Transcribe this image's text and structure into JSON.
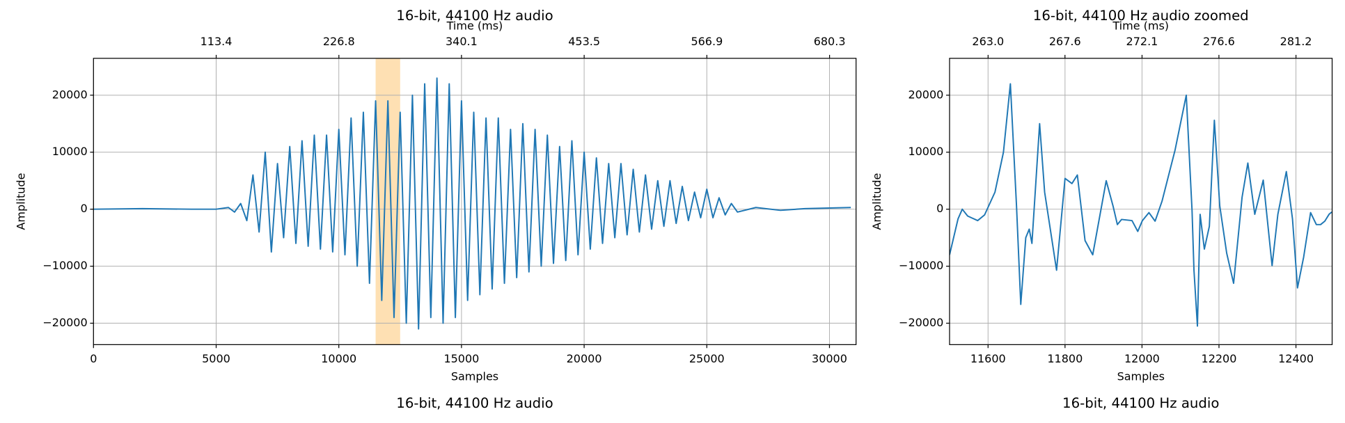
{
  "chart_data": [
    {
      "type": "line",
      "title": "16-bit, 44100 Hz audio",
      "x2label": "Time (ms)",
      "xlabel": "Samples",
      "ylabel": "Amplitude",
      "caption": "16-bit, 44100 Hz audio",
      "x": [
        0,
        2000,
        4000,
        5000,
        5500,
        5750,
        6000,
        6250,
        6500,
        6750,
        7000,
        7250,
        7500,
        7750,
        8000,
        8250,
        8500,
        8750,
        9000,
        9250,
        9500,
        9750,
        10000,
        10250,
        10500,
        10750,
        11000,
        11250,
        11500,
        11750,
        12000,
        12250,
        12500,
        12750,
        13000,
        13250,
        13500,
        13750,
        14000,
        14250,
        14500,
        14750,
        15000,
        15250,
        15500,
        15750,
        16000,
        16250,
        16500,
        16750,
        17000,
        17250,
        17500,
        17750,
        18000,
        18250,
        18500,
        18750,
        19000,
        19250,
        19500,
        19750,
        20000,
        20250,
        20500,
        20750,
        21000,
        21250,
        21500,
        21750,
        22000,
        22250,
        22500,
        22750,
        23000,
        23250,
        23500,
        23750,
        24000,
        24250,
        24500,
        24750,
        25000,
        25250,
        25500,
        25750,
        26000,
        26250,
        27000,
        28000,
        29000,
        30000,
        30870
      ],
      "values": [
        0,
        100,
        0,
        0,
        300,
        -500,
        1000,
        -2000,
        6000,
        -4000,
        10000,
        -7500,
        8000,
        -5000,
        11000,
        -6000,
        12000,
        -6500,
        13000,
        -7000,
        13000,
        -7500,
        14000,
        -8000,
        16000,
        -10000,
        17000,
        -13000,
        19000,
        -16000,
        19000,
        -19000,
        17000,
        -20000,
        20000,
        -21000,
        22000,
        -19000,
        23000,
        -20000,
        22000,
        -19000,
        19000,
        -16000,
        17000,
        -15000,
        16000,
        -14000,
        16000,
        -13000,
        14000,
        -12000,
        15000,
        -11000,
        14000,
        -10000,
        13000,
        -9500,
        11000,
        -9000,
        12000,
        -8000,
        10000,
        -7000,
        9000,
        -6000,
        8000,
        -5000,
        8000,
        -4500,
        7000,
        -4000,
        6000,
        -3500,
        5000,
        -3000,
        5000,
        -2500,
        4000,
        -2000,
        3000,
        -1500,
        3500,
        -1500,
        2000,
        -1000,
        1000,
        -500,
        300,
        -200,
        100,
        200,
        300
      ],
      "color": "#1f77b4",
      "highlight": {
        "xmin": 11500,
        "xmax": 12500,
        "color": "#fee0b3"
      },
      "xlim": [
        0,
        31084
      ],
      "xticks": [
        0,
        5000,
        10000,
        15000,
        20000,
        25000,
        30000
      ],
      "x2lim": [
        0,
        704.8
      ],
      "x2ticks": [
        113.4,
        226.8,
        340.1,
        453.5,
        566.9,
        680.3
      ],
      "ylim": [
        -23760,
        26470
      ],
      "yticks": [
        {
          "value": -20000,
          "label": "−20000"
        },
        {
          "value": -10000,
          "label": "−10000"
        },
        0,
        10000,
        20000
      ],
      "grid": true
    },
    {
      "type": "line",
      "title": "16-bit, 44100 Hz audio zoomed",
      "x2label": "Time (ms)",
      "xlabel": "Samples",
      "ylabel": "Amplitude",
      "caption": "16-bit, 44100 Hz audio",
      "x": [
        11500,
        11522,
        11533,
        11547,
        11573,
        11591,
        11618,
        11640,
        11658,
        11674,
        11685,
        11698,
        11707,
        11714,
        11734,
        11747,
        11778,
        11800,
        11818,
        11832,
        11852,
        11872,
        11907,
        11925,
        11936,
        11947,
        11974,
        11989,
        12001,
        12018,
        12034,
        12052,
        12086,
        12115,
        12130,
        12135,
        12144,
        12151,
        12162,
        12175,
        12188,
        12202,
        12220,
        12238,
        12260,
        12275,
        12293,
        12315,
        12338,
        12353,
        12375,
        12391,
        12404,
        12420,
        12438,
        12453,
        12464,
        12475,
        12486,
        12493
      ],
      "values": [
        -8000,
        -1700,
        0,
        -1200,
        -2000,
        -1000,
        3000,
        10000,
        22000,
        500,
        -16700,
        -5000,
        -3500,
        -6000,
        15000,
        3000,
        -10700,
        5400,
        4500,
        6000,
        -5500,
        -8000,
        5000,
        500,
        -2700,
        -1800,
        -2000,
        -3900,
        -2000,
        -600,
        -2100,
        1400,
        10400,
        20000,
        -200,
        -10700,
        -20500,
        -900,
        -7000,
        -3000,
        15600,
        600,
        -7700,
        -13000,
        2100,
        8100,
        -900,
        5100,
        -9900,
        -900,
        6600,
        -1700,
        -13800,
        -8400,
        -600,
        -2700,
        -2700,
        -2100,
        -900,
        -500
      ],
      "color": "#1f77b4",
      "xlim": [
        11500,
        12494
      ],
      "xticks": [
        11600,
        11800,
        12000,
        12200,
        12400
      ],
      "x2lim": [
        260.77,
        283.31
      ],
      "x2ticks": [
        {
          "value": 263.04,
          "label": "263.0"
        },
        {
          "value": 267.57,
          "label": "267.6"
        },
        {
          "value": 272.11,
          "label": "272.1"
        },
        {
          "value": 276.64,
          "label": "276.6"
        },
        {
          "value": 281.18,
          "label": "281.2"
        }
      ],
      "ylim": [
        -23760,
        26470
      ],
      "yticks": [
        {
          "value": -20000,
          "label": "−20000"
        },
        {
          "value": -10000,
          "label": "−10000"
        },
        0,
        10000,
        20000
      ],
      "grid": true
    }
  ]
}
